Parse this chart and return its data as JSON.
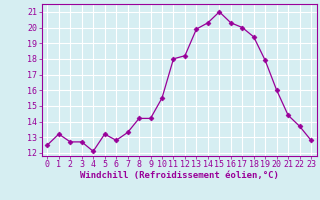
{
  "x": [
    0,
    1,
    2,
    3,
    4,
    5,
    6,
    7,
    8,
    9,
    10,
    11,
    12,
    13,
    14,
    15,
    16,
    17,
    18,
    19,
    20,
    21,
    22,
    23
  ],
  "y": [
    12.5,
    13.2,
    12.7,
    12.7,
    12.1,
    13.2,
    12.8,
    13.3,
    14.2,
    14.2,
    15.5,
    18.0,
    18.2,
    19.9,
    20.3,
    21.0,
    20.3,
    20.0,
    19.4,
    17.9,
    16.0,
    14.4,
    13.7,
    12.8
  ],
  "line_color": "#990099",
  "marker": "D",
  "marker_size": 2.5,
  "bg_color": "#d6eef2",
  "grid_color": "#ffffff",
  "xlabel": "Windchill (Refroidissement éolien,°C)",
  "xlabel_fontsize": 6.5,
  "tick_fontsize": 6.0,
  "yticks": [
    12,
    13,
    14,
    15,
    16,
    17,
    18,
    19,
    20,
    21
  ],
  "ylim": [
    11.8,
    21.5
  ],
  "xlim": [
    -0.5,
    23.5
  ]
}
